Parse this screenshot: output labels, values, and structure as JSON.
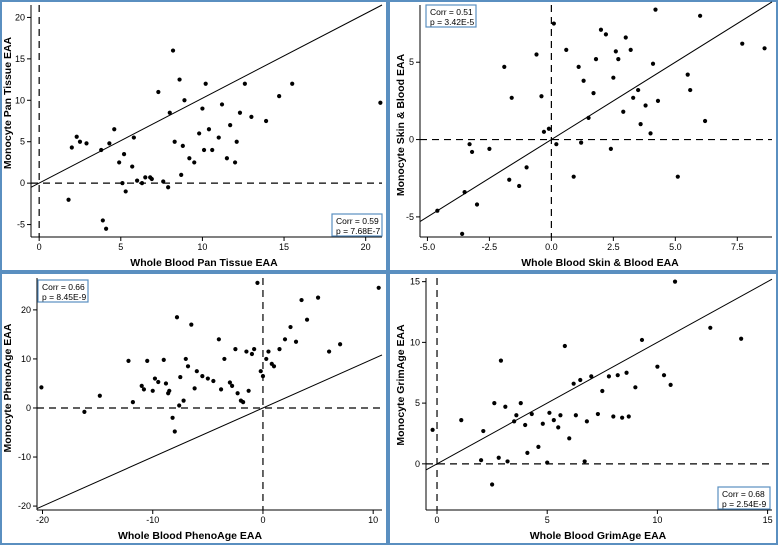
{
  "chart_data": [
    {
      "type": "scatter",
      "title": "",
      "xlabel": "Whole Blood Pan Tissue EAA",
      "ylabel": "Monocyte Pan Tissue EAA",
      "xlim": [
        -0.5,
        21
      ],
      "ylim": [
        -6.5,
        21.5
      ],
      "xticks": [
        0,
        5,
        10,
        15,
        20
      ],
      "xtick_labels": [
        "0",
        "5",
        "10",
        "15",
        "20"
      ],
      "yticks": [
        -5,
        0,
        5,
        10,
        15,
        20
      ],
      "ytick_labels": [
        "-5",
        "0",
        "5",
        "10",
        "15",
        "20"
      ],
      "reference_lines": {
        "x": 0,
        "y": 0
      },
      "fit_line": {
        "x": [
          -0.5,
          21
        ],
        "y": [
          -0.5,
          21.5
        ]
      },
      "stats": {
        "corr": "Corr = 0.59",
        "p": "p = 7.68E-7",
        "position": "bottom-right"
      },
      "x": [
        1.8,
        2.0,
        2.3,
        2.5,
        2.9,
        3.8,
        3.9,
        4.1,
        4.3,
        4.6,
        4.9,
        5.1,
        5.2,
        5.3,
        5.7,
        5.8,
        6.0,
        6.3,
        6.5,
        6.8,
        6.9,
        7.3,
        7.6,
        7.9,
        8.0,
        8.2,
        8.3,
        8.6,
        8.7,
        8.8,
        8.9,
        9.2,
        9.5,
        9.8,
        10.0,
        10.1,
        10.2,
        10.4,
        10.6,
        11.0,
        11.2,
        11.5,
        11.7,
        12.0,
        12.1,
        12.3,
        12.6,
        13.0,
        13.9,
        14.7,
        15.5,
        20.9
      ],
      "y": [
        -2.0,
        4.3,
        5.6,
        5.0,
        4.8,
        4.0,
        -4.5,
        -5.5,
        4.8,
        6.5,
        2.5,
        0.0,
        3.5,
        -1.0,
        2.0,
        5.5,
        0.3,
        0.0,
        0.7,
        0.7,
        0.5,
        11.0,
        0.2,
        -0.5,
        8.5,
        16.0,
        5.0,
        12.5,
        1.0,
        4.5,
        10.0,
        3.0,
        2.5,
        6.0,
        9.0,
        4.0,
        12.0,
        6.5,
        4.0,
        5.5,
        9.5,
        3.0,
        7.0,
        2.5,
        5.0,
        8.5,
        12.0,
        8.0,
        7.5,
        10.5,
        12.0,
        9.7
      ]
    },
    {
      "type": "scatter",
      "title": "",
      "xlabel": "Whole Blood Skin & Blood EAA",
      "ylabel": "Monocyte Skin & Blood EAA",
      "xlim": [
        -5.3,
        8.9
      ],
      "ylim": [
        -6.3,
        8.7
      ],
      "xticks": [
        -5.0,
        -2.5,
        0.0,
        2.5,
        5.0,
        7.5
      ],
      "xtick_labels": [
        "-5.0",
        "-2.5",
        "0.0",
        "2.5",
        "5.0",
        "7.5"
      ],
      "yticks": [
        -5,
        0,
        5
      ],
      "ytick_labels": [
        "-5",
        "0",
        "5"
      ],
      "reference_lines": {
        "x": 0,
        "y": 0
      },
      "fit_line": {
        "x": [
          -5.3,
          8.9
        ],
        "y": [
          -5.3,
          8.9
        ]
      },
      "stats": {
        "corr": "Corr = 0.51",
        "p": "p = 3.42E-5",
        "position": "top-left"
      },
      "x": [
        -4.6,
        -3.6,
        -3.5,
        -3.3,
        -3.2,
        -3.0,
        -2.5,
        -1.9,
        -1.7,
        -1.6,
        -1.3,
        -1.0,
        -0.6,
        -0.4,
        -0.3,
        -0.1,
        0.1,
        0.2,
        0.6,
        0.9,
        1.1,
        1.2,
        1.3,
        1.5,
        1.7,
        1.8,
        2.0,
        2.2,
        2.4,
        2.5,
        2.6,
        2.7,
        2.9,
        3.0,
        3.2,
        3.3,
        3.5,
        3.6,
        3.8,
        4.0,
        4.1,
        4.2,
        4.3,
        5.1,
        5.5,
        5.6,
        6.0,
        6.2,
        7.7,
        8.6
      ],
      "y": [
        -4.6,
        -6.1,
        -3.4,
        -0.3,
        -0.8,
        -4.2,
        -0.6,
        4.7,
        -2.6,
        2.7,
        -3.0,
        -1.8,
        5.5,
        2.8,
        0.5,
        0.7,
        7.5,
        -0.3,
        5.8,
        -2.4,
        4.7,
        -0.2,
        3.8,
        1.4,
        3.0,
        5.2,
        7.1,
        6.8,
        -0.6,
        4.0,
        5.7,
        5.2,
        1.8,
        6.6,
        5.8,
        2.7,
        3.2,
        1.0,
        2.2,
        0.4,
        4.9,
        8.4,
        2.5,
        -2.4,
        4.2,
        3.2,
        8.0,
        1.2,
        6.2,
        5.9
      ]
    },
    {
      "type": "scatter",
      "title": "",
      "xlabel": "Whole Blood PhenoAge EAA",
      "ylabel": "Monocyte PhenoAge EAA",
      "xlim": [
        -20.5,
        10.8
      ],
      "ylim": [
        -20.8,
        26.5
      ],
      "xticks": [
        -20,
        -10,
        0,
        10
      ],
      "xtick_labels": [
        "-20",
        "-10",
        "0",
        "10"
      ],
      "yticks": [
        -20,
        -10,
        0,
        10,
        20
      ],
      "ytick_labels": [
        "-20",
        "-10",
        "0",
        "10",
        "20"
      ],
      "reference_lines": {
        "x": 0,
        "y": 0
      },
      "fit_line": {
        "x": [
          -20.5,
          10.8
        ],
        "y": [
          -20.5,
          10.8
        ]
      },
      "stats": {
        "corr": "Corr = 0.66",
        "p": "p = 8.45E-9",
        "position": "top-left"
      },
      "x": [
        -20.1,
        -16.2,
        -14.8,
        -12.2,
        -11.8,
        -11.0,
        -10.8,
        -10.5,
        -10.0,
        -9.8,
        -9.5,
        -9.0,
        -8.8,
        -8.6,
        -8.5,
        -8.2,
        -8.0,
        -7.8,
        -7.6,
        -7.5,
        -7.2,
        -7.0,
        -6.8,
        -6.5,
        -6.2,
        -6.0,
        -5.5,
        -5.0,
        -4.5,
        -4.0,
        -3.8,
        -3.5,
        -3.0,
        -2.8,
        -2.5,
        -2.3,
        -2.0,
        -1.8,
        -1.5,
        -1.3,
        -1.0,
        -0.8,
        -0.5,
        -0.2,
        0.0,
        0.3,
        0.5,
        0.8,
        1.0,
        1.5,
        2.0,
        2.5,
        3.0,
        3.5,
        4.0,
        5.0,
        6.0,
        7.0,
        10.5
      ],
      "y": [
        4.2,
        -0.8,
        2.5,
        9.6,
        1.2,
        4.5,
        3.8,
        9.6,
        3.5,
        6.0,
        5.3,
        9.8,
        5.0,
        3.0,
        3.5,
        -2.0,
        -4.8,
        18.5,
        0.5,
        6.3,
        1.5,
        10.0,
        8.5,
        17.0,
        4.0,
        7.5,
        6.5,
        6.0,
        5.5,
        14.0,
        3.8,
        10.0,
        5.2,
        4.5,
        12.0,
        3.0,
        1.5,
        1.2,
        11.5,
        3.5,
        11.0,
        12.0,
        25.5,
        7.5,
        6.5,
        10.0,
        11.5,
        9.0,
        8.5,
        12.0,
        14.0,
        16.5,
        13.5,
        22.0,
        18.0,
        22.5,
        11.5,
        13.0,
        24.5
      ]
    },
    {
      "type": "scatter",
      "title": "",
      "xlabel": "Whole Blood GrimAge EAA",
      "ylabel": "Monocyte GrimAge EAA",
      "xlim": [
        -0.5,
        15.2
      ],
      "ylim": [
        -3.8,
        15.3
      ],
      "xticks": [
        0,
        5,
        10,
        15
      ],
      "xtick_labels": [
        "0",
        "5",
        "10",
        "15"
      ],
      "yticks": [
        0,
        5,
        10,
        15
      ],
      "ytick_labels": [
        "0",
        "5",
        "10",
        "15"
      ],
      "reference_lines": {
        "x": 0,
        "y": 0
      },
      "fit_line": {
        "x": [
          -0.5,
          15.2
        ],
        "y": [
          -0.5,
          15.2
        ]
      },
      "stats": {
        "corr": "Corr = 0.68",
        "p": "p = 2.54E-9",
        "position": "bottom-right"
      },
      "x": [
        -0.2,
        1.1,
        2.0,
        2.1,
        2.5,
        2.6,
        2.8,
        2.9,
        3.1,
        3.2,
        3.5,
        3.6,
        3.8,
        4.0,
        4.1,
        4.3,
        4.6,
        4.8,
        5.0,
        5.1,
        5.3,
        5.5,
        5.6,
        5.8,
        6.0,
        6.2,
        6.3,
        6.5,
        6.7,
        6.8,
        7.0,
        7.3,
        7.5,
        7.8,
        8.0,
        8.2,
        8.4,
        8.6,
        8.7,
        9.0,
        9.3,
        10.0,
        10.3,
        10.6,
        10.8,
        12.4,
        13.8
      ],
      "y": [
        2.8,
        3.6,
        0.3,
        2.7,
        -1.7,
        5.0,
        0.5,
        8.5,
        4.7,
        0.2,
        3.5,
        4.0,
        5.0,
        3.2,
        0.9,
        4.1,
        1.4,
        3.3,
        0.1,
        4.2,
        3.6,
        3.0,
        4.0,
        9.7,
        2.1,
        6.6,
        4.0,
        6.9,
        0.2,
        3.5,
        7.2,
        4.1,
        6.0,
        7.2,
        3.9,
        7.3,
        3.8,
        7.5,
        3.9,
        6.3,
        10.2,
        8.0,
        7.3,
        6.5,
        15.0,
        11.2,
        10.3
      ]
    }
  ]
}
